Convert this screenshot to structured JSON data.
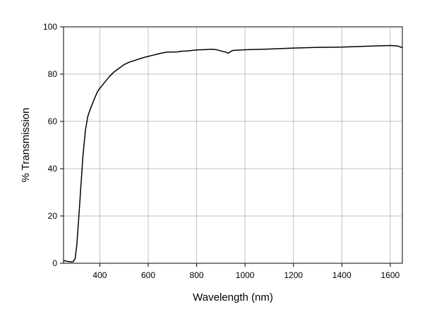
{
  "chart_data": {
    "type": "line",
    "title": "",
    "xlabel": "Wavelength (nm)",
    "ylabel": "% Transmission",
    "xlim": [
      250,
      1650
    ],
    "ylim": [
      0,
      100
    ],
    "grid": true,
    "legend": "none",
    "xticks": [
      400,
      600,
      800,
      1000,
      1200,
      1400,
      1600
    ],
    "xtick_labels": [
      "400",
      "600",
      "800",
      "1000",
      "1200",
      "1400",
      "1600"
    ],
    "yticks": [
      0,
      20,
      40,
      60,
      80,
      100
    ],
    "ytick_labels": [
      "0",
      "20",
      "40",
      "60",
      "80",
      "100"
    ],
    "line_color": "#000000",
    "grid_color": "#bfbfbf",
    "series": [
      {
        "x": [
          250,
          265,
          280,
          290,
          298,
          305,
          312,
          320,
          330,
          340,
          350,
          360,
          375,
          390,
          400,
          420,
          440,
          460,
          480,
          500,
          520,
          550,
          580,
          600,
          620,
          640,
          660,
          680,
          700,
          720,
          740,
          760,
          780,
          800,
          820,
          840,
          860,
          880,
          900,
          920,
          930,
          940,
          945,
          950,
          1000,
          1100,
          1200,
          1300,
          1400,
          1500,
          1600,
          1630,
          1650
        ],
        "y": [
          1.2,
          0.8,
          0.6,
          0.7,
          2.0,
          8.0,
          18.0,
          30.0,
          45.0,
          56.0,
          62.0,
          65.0,
          69.0,
          72.5,
          74.0,
          76.5,
          79.0,
          81.0,
          82.5,
          84.0,
          85.0,
          86.0,
          87.0,
          87.5,
          88.0,
          88.5,
          89.0,
          89.3,
          89.3,
          89.4,
          89.7,
          89.8,
          90.0,
          90.2,
          90.3,
          90.4,
          90.5,
          90.4,
          89.8,
          89.3,
          88.8,
          89.5,
          89.8,
          90.0,
          90.3,
          90.6,
          91.0,
          91.3,
          91.4,
          91.8,
          92.1,
          91.9,
          91.2
        ]
      }
    ]
  }
}
